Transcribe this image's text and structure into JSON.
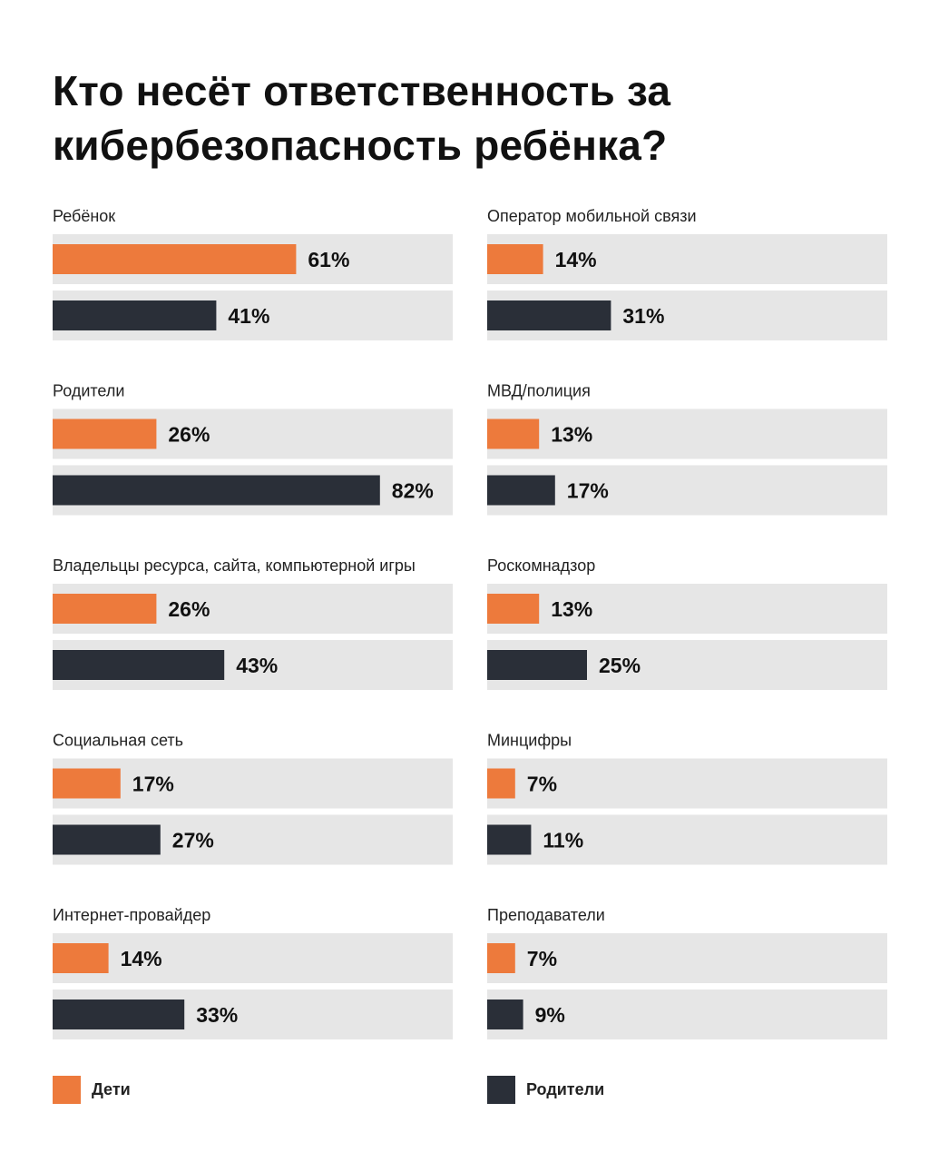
{
  "title_lines": [
    "Кто несёт ответственность за",
    "кибербезопасность ребёнка?"
  ],
  "colors": {
    "children": "#ED7A3C",
    "parents": "#2A2F38",
    "track": "#E6E6E6"
  },
  "legend": {
    "children": "Дети",
    "parents": "Родители"
  },
  "chart_data": {
    "type": "bar",
    "orientation": "horizontal",
    "title": "Кто несёт ответственность за кибербезопасность ребёнка?",
    "value_format": "percent",
    "xlim": [
      0,
      100
    ],
    "series_names": [
      "Дети",
      "Родители"
    ],
    "groups": [
      {
        "category": "Ребёнок",
        "values": [
          61,
          41
        ],
        "labels": [
          "61%",
          "41%"
        ]
      },
      {
        "category": "Оператор мобильной связи",
        "values": [
          14,
          31
        ],
        "labels": [
          "14%",
          "31%"
        ]
      },
      {
        "category": "Родители",
        "values": [
          26,
          82
        ],
        "labels": [
          "26%",
          "82%"
        ]
      },
      {
        "category": "МВД/полиция",
        "values": [
          13,
          17
        ],
        "labels": [
          "13%",
          "17%"
        ]
      },
      {
        "category": "Владельцы ресурса, сайта, компьютерной игры",
        "values": [
          26,
          43
        ],
        "labels": [
          "26%",
          "43%"
        ]
      },
      {
        "category": "Роскомнадзор",
        "values": [
          13,
          25
        ],
        "labels": [
          "13%",
          "25%"
        ]
      },
      {
        "category": "Социальная сеть",
        "values": [
          17,
          27
        ],
        "labels": [
          "17%",
          "27%"
        ]
      },
      {
        "category": "Минцифры",
        "values": [
          7,
          11
        ],
        "labels": [
          "7%",
          "11%"
        ]
      },
      {
        "category": "Интернет-провайдер",
        "values": [
          14,
          33
        ],
        "labels": [
          "14%",
          "33%"
        ]
      },
      {
        "category": "Преподаватели",
        "values": [
          7,
          9
        ],
        "labels": [
          "7%",
          "9%"
        ]
      }
    ]
  }
}
